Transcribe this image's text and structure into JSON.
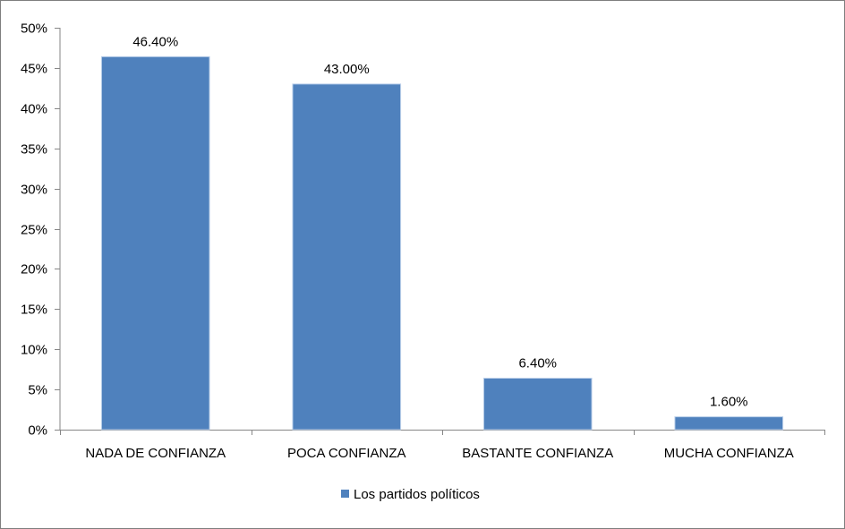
{
  "chart_data": {
    "type": "bar",
    "title": "",
    "xlabel": "",
    "ylabel": "",
    "categories": [
      "NADA DE CONFIANZA",
      "POCA CONFIANZA",
      "BASTANTE CONFIANZA",
      "MUCHA CONFIANZA"
    ],
    "series": [
      {
        "name": "Los partidos políticos",
        "values": [
          46.4,
          43.0,
          6.4,
          1.6
        ],
        "data_labels": [
          "46.40%",
          "43.00%",
          "6.40%",
          "1.60%"
        ],
        "color": "#4f81bd"
      }
    ],
    "ylim": [
      0,
      50
    ],
    "yticks": [
      0,
      5,
      10,
      15,
      20,
      25,
      30,
      35,
      40,
      45,
      50
    ],
    "ytick_labels": [
      "0%",
      "5%",
      "10%",
      "15%",
      "20%",
      "25%",
      "30%",
      "35%",
      "40%",
      "45%",
      "50%"
    ],
    "grid": false,
    "legend_position": "bottom"
  }
}
